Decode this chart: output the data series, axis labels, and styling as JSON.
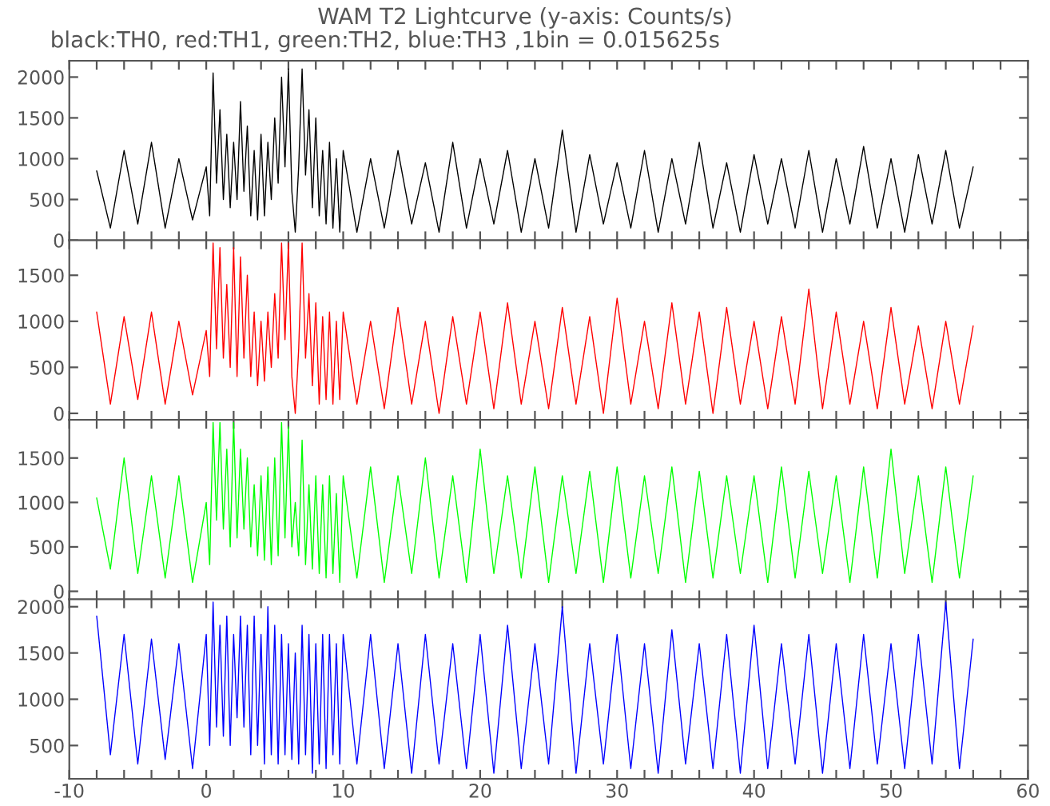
{
  "chart_data": [
    {
      "type": "line",
      "title": "WAM T2 Lightcurve (y-axis: Counts/s)",
      "subtitle": "black:TH0, red:TH1, green:TH2, blue:TH3 ,1bin = 0.015625s",
      "tick_labels": "y",
      "grid": false,
      "legend": false,
      "x": [
        -8,
        -7,
        -6,
        -5,
        -4,
        -3,
        -2,
        -1,
        0,
        0.25,
        0.5,
        0.75,
        1,
        1.25,
        1.5,
        1.75,
        2,
        2.25,
        2.5,
        2.75,
        3,
        3.25,
        3.5,
        3.75,
        4,
        4.25,
        4.5,
        4.75,
        5,
        5.25,
        5.5,
        5.75,
        6,
        6.25,
        6.5,
        6.75,
        7,
        7.25,
        7.5,
        7.75,
        8,
        8.25,
        8.5,
        8.75,
        9,
        9.25,
        9.5,
        9.75,
        10,
        11,
        12,
        13,
        14,
        15,
        16,
        17,
        18,
        19,
        20,
        21,
        22,
        23,
        24,
        25,
        26,
        27,
        28,
        29,
        30,
        31,
        32,
        33,
        34,
        35,
        36,
        37,
        38,
        39,
        40,
        41,
        42,
        43,
        44,
        45,
        46,
        47,
        48,
        49,
        50,
        51,
        52,
        53,
        54,
        55,
        56
      ],
      "series": [
        {
          "color": "#000000",
          "values": [
            850,
            150,
            1100,
            200,
            1200,
            150,
            1000,
            250,
            900,
            300,
            2050,
            700,
            1600,
            500,
            1300,
            400,
            1200,
            500,
            1700,
            600,
            1400,
            300,
            1100,
            250,
            1300,
            300,
            1200,
            500,
            1500,
            700,
            2000,
            900,
            2100,
            600,
            100,
            900,
            2100,
            800,
            1600,
            400,
            1500,
            300,
            1100,
            200,
            1200,
            150,
            1000,
            100,
            1100,
            100,
            1000,
            150,
            1100,
            200,
            950,
            100,
            1200,
            150,
            1000,
            200,
            1100,
            100,
            1000,
            150,
            1350,
            100,
            1050,
            200,
            950,
            150,
            1100,
            100,
            1000,
            200,
            1200,
            150,
            950,
            100,
            1050,
            200,
            1000,
            150,
            1100,
            100,
            1000,
            200,
            1150,
            150,
            1000,
            100,
            1050,
            200,
            1100,
            150,
            900
          ]
        }
      ],
      "xlim": [
        -10,
        60
      ],
      "ylim": [
        0,
        2200
      ],
      "yticks": [
        0,
        500,
        1000,
        1500,
        2000
      ],
      "xticks": [
        -10,
        {
          "value": -8,
          "label": null
        },
        {
          "value": -6,
          "label": null
        },
        {
          "value": -4,
          "label": null
        },
        {
          "value": -2,
          "label": null
        },
        0,
        {
          "value": 2,
          "label": null
        },
        {
          "value": 4,
          "label": null
        },
        {
          "value": 6,
          "label": null
        },
        {
          "value": 8,
          "label": null
        },
        10,
        {
          "value": 12,
          "label": null
        },
        {
          "value": 14,
          "label": null
        },
        {
          "value": 16,
          "label": null
        },
        {
          "value": 18,
          "label": null
        },
        20,
        {
          "value": 22,
          "label": null
        },
        {
          "value": 24,
          "label": null
        },
        {
          "value": 26,
          "label": null
        },
        {
          "value": 28,
          "label": null
        },
        30,
        {
          "value": 32,
          "label": null
        },
        {
          "value": 34,
          "label": null
        },
        {
          "value": 36,
          "label": null
        },
        {
          "value": 38,
          "label": null
        },
        40,
        {
          "value": 42,
          "label": null
        },
        {
          "value": 44,
          "label": null
        },
        {
          "value": 46,
          "label": null
        },
        {
          "value": 48,
          "label": null
        },
        50,
        {
          "value": 52,
          "label": null
        },
        {
          "value": 54,
          "label": null
        },
        {
          "value": 56,
          "label": null
        },
        {
          "value": 58,
          "label": null
        },
        60
      ]
    },
    {
      "type": "line",
      "tick_labels": "y",
      "grid": false,
      "legend": false,
      "x": [
        -8,
        -7,
        -6,
        -5,
        -4,
        -3,
        -2,
        -1,
        0,
        0.25,
        0.5,
        0.75,
        1,
        1.25,
        1.5,
        1.75,
        2,
        2.25,
        2.5,
        2.75,
        3,
        3.25,
        3.5,
        3.75,
        4,
        4.25,
        4.5,
        4.75,
        5,
        5.25,
        5.5,
        5.75,
        6,
        6.25,
        6.5,
        6.75,
        7,
        7.25,
        7.5,
        7.75,
        8,
        8.25,
        8.5,
        8.75,
        9,
        9.25,
        9.5,
        9.75,
        10,
        11,
        12,
        13,
        14,
        15,
        16,
        17,
        18,
        19,
        20,
        21,
        22,
        23,
        24,
        25,
        26,
        27,
        28,
        29,
        30,
        31,
        32,
        33,
        34,
        35,
        36,
        37,
        38,
        39,
        40,
        41,
        42,
        43,
        44,
        45,
        46,
        47,
        48,
        49,
        50,
        51,
        52,
        53,
        54,
        55,
        56
      ],
      "series": [
        {
          "color": "#ff0000",
          "values": [
            1100,
            100,
            1050,
            150,
            1100,
            100,
            1000,
            200,
            900,
            400,
            1850,
            700,
            1800,
            600,
            1400,
            500,
            1800,
            400,
            1700,
            600,
            1500,
            400,
            1100,
            300,
            1000,
            350,
            1100,
            500,
            1300,
            600,
            1850,
            800,
            1850,
            400,
            0,
            700,
            1850,
            600,
            1300,
            300,
            1200,
            100,
            1050,
            150,
            1100,
            100,
            1000,
            150,
            1100,
            100,
            1000,
            50,
            1150,
            100,
            1000,
            0,
            1050,
            100,
            1100,
            50,
            1200,
            100,
            1000,
            50,
            1150,
            100,
            1050,
            0,
            1250,
            100,
            1000,
            50,
            1200,
            100,
            1100,
            0,
            1150,
            100,
            1000,
            50,
            1050,
            100,
            1350,
            50,
            1100,
            100,
            1000,
            50,
            1150,
            100,
            950,
            50,
            1000,
            100,
            950
          ]
        }
      ],
      "xlim": [
        -10,
        60
      ],
      "ylim": [
        -70,
        1880
      ],
      "yticks": [
        0,
        500,
        1000,
        1500
      ],
      "xticks": [
        -10,
        {
          "value": -8,
          "label": null
        },
        {
          "value": -6,
          "label": null
        },
        {
          "value": -4,
          "label": null
        },
        {
          "value": -2,
          "label": null
        },
        0,
        {
          "value": 2,
          "label": null
        },
        {
          "value": 4,
          "label": null
        },
        {
          "value": 6,
          "label": null
        },
        {
          "value": 8,
          "label": null
        },
        10,
        {
          "value": 12,
          "label": null
        },
        {
          "value": 14,
          "label": null
        },
        {
          "value": 16,
          "label": null
        },
        {
          "value": 18,
          "label": null
        },
        20,
        {
          "value": 22,
          "label": null
        },
        {
          "value": 24,
          "label": null
        },
        {
          "value": 26,
          "label": null
        },
        {
          "value": 28,
          "label": null
        },
        30,
        {
          "value": 32,
          "label": null
        },
        {
          "value": 34,
          "label": null
        },
        {
          "value": 36,
          "label": null
        },
        {
          "value": 38,
          "label": null
        },
        40,
        {
          "value": 42,
          "label": null
        },
        {
          "value": 44,
          "label": null
        },
        {
          "value": 46,
          "label": null
        },
        {
          "value": 48,
          "label": null
        },
        50,
        {
          "value": 52,
          "label": null
        },
        {
          "value": 54,
          "label": null
        },
        {
          "value": 56,
          "label": null
        },
        {
          "value": 58,
          "label": null
        },
        60
      ]
    },
    {
      "type": "line",
      "tick_labels": "y",
      "grid": false,
      "legend": false,
      "x": [
        -8,
        -7,
        -6,
        -5,
        -4,
        -3,
        -2,
        -1,
        0,
        0.25,
        0.5,
        0.75,
        1,
        1.25,
        1.5,
        1.75,
        2,
        2.25,
        2.5,
        2.75,
        3,
        3.25,
        3.5,
        3.75,
        4,
        4.25,
        4.5,
        4.75,
        5,
        5.25,
        5.5,
        5.75,
        6,
        6.25,
        6.5,
        6.75,
        7,
        7.25,
        7.5,
        7.75,
        8,
        8.25,
        8.5,
        8.75,
        9,
        9.25,
        9.5,
        9.75,
        10,
        11,
        12,
        13,
        14,
        15,
        16,
        17,
        18,
        19,
        20,
        21,
        22,
        23,
        24,
        25,
        26,
        27,
        28,
        29,
        30,
        31,
        32,
        33,
        34,
        35,
        36,
        37,
        38,
        39,
        40,
        41,
        42,
        43,
        44,
        45,
        46,
        47,
        48,
        49,
        50,
        51,
        52,
        53,
        54,
        55,
        56
      ],
      "series": [
        {
          "color": "#00ff00",
          "values": [
            1050,
            250,
            1500,
            200,
            1300,
            150,
            1300,
            100,
            1000,
            300,
            1900,
            800,
            1900,
            700,
            1600,
            500,
            1900,
            600,
            1600,
            700,
            1500,
            500,
            1200,
            400,
            1300,
            350,
            1400,
            300,
            1500,
            400,
            1900,
            600,
            1850,
            500,
            1000,
            400,
            1700,
            300,
            1200,
            250,
            1300,
            200,
            1200,
            150,
            1300,
            200,
            1100,
            100,
            1300,
            150,
            1400,
            100,
            1300,
            200,
            1500,
            150,
            1300,
            100,
            1600,
            200,
            1300,
            150,
            1400,
            100,
            1300,
            200,
            1350,
            100,
            1400,
            150,
            1300,
            200,
            1400,
            100,
            1350,
            150,
            1300,
            200,
            1300,
            100,
            1400,
            150,
            1350,
            200,
            1300,
            100,
            1400,
            150,
            1600,
            200,
            1300,
            100,
            1400,
            150,
            1300
          ]
        }
      ],
      "xlim": [
        -10,
        60
      ],
      "ylim": [
        -90,
        1930
      ],
      "yticks": [
        0,
        500,
        1000,
        1500
      ],
      "xticks": [
        -10,
        {
          "value": -8,
          "label": null
        },
        {
          "value": -6,
          "label": null
        },
        {
          "value": -4,
          "label": null
        },
        {
          "value": -2,
          "label": null
        },
        0,
        {
          "value": 2,
          "label": null
        },
        {
          "value": 4,
          "label": null
        },
        {
          "value": 6,
          "label": null
        },
        {
          "value": 8,
          "label": null
        },
        10,
        {
          "value": 12,
          "label": null
        },
        {
          "value": 14,
          "label": null
        },
        {
          "value": 16,
          "label": null
        },
        {
          "value": 18,
          "label": null
        },
        20,
        {
          "value": 22,
          "label": null
        },
        {
          "value": 24,
          "label": null
        },
        {
          "value": 26,
          "label": null
        },
        {
          "value": 28,
          "label": null
        },
        30,
        {
          "value": 32,
          "label": null
        },
        {
          "value": 34,
          "label": null
        },
        {
          "value": 36,
          "label": null
        },
        {
          "value": 38,
          "label": null
        },
        40,
        {
          "value": 42,
          "label": null
        },
        {
          "value": 44,
          "label": null
        },
        {
          "value": 46,
          "label": null
        },
        {
          "value": 48,
          "label": null
        },
        50,
        {
          "value": 52,
          "label": null
        },
        {
          "value": 54,
          "label": null
        },
        {
          "value": 56,
          "label": null
        },
        {
          "value": 58,
          "label": null
        },
        60
      ]
    },
    {
      "type": "line",
      "grid": false,
      "legend": false,
      "x": [
        -8,
        -7,
        -6,
        -5,
        -4,
        -3,
        -2,
        -1,
        0,
        0.25,
        0.5,
        0.75,
        1,
        1.25,
        1.5,
        1.75,
        2,
        2.25,
        2.5,
        2.75,
        3,
        3.25,
        3.5,
        3.75,
        4,
        4.25,
        4.5,
        4.75,
        5,
        5.25,
        5.5,
        5.75,
        6,
        6.25,
        6.5,
        6.75,
        7,
        7.25,
        7.5,
        7.75,
        8,
        8.25,
        8.5,
        8.75,
        9,
        9.25,
        9.5,
        9.75,
        10,
        11,
        12,
        13,
        14,
        15,
        16,
        17,
        18,
        19,
        20,
        21,
        22,
        23,
        24,
        25,
        26,
        27,
        28,
        29,
        30,
        31,
        32,
        33,
        34,
        35,
        36,
        37,
        38,
        39,
        40,
        41,
        42,
        43,
        44,
        45,
        46,
        47,
        48,
        49,
        50,
        51,
        52,
        53,
        54,
        55,
        56
      ],
      "series": [
        {
          "color": "#0000ff",
          "values": [
            1900,
            400,
            1700,
            300,
            1650,
            350,
            1600,
            250,
            1700,
            500,
            2050,
            700,
            1800,
            600,
            1900,
            500,
            1700,
            800,
            1900,
            700,
            1800,
            400,
            1900,
            500,
            1700,
            300,
            2000,
            400,
            1800,
            300,
            1700,
            400,
            1600,
            350,
            1500,
            300,
            1800,
            400,
            1700,
            200,
            1600,
            300,
            1700,
            250,
            1700,
            400,
            1600,
            300,
            1700,
            300,
            1700,
            250,
            1600,
            200,
            1700,
            300,
            1600,
            250,
            1700,
            200,
            1800,
            250,
            1600,
            300,
            2000,
            200,
            1600,
            300,
            1700,
            250,
            1600,
            200,
            1750,
            300,
            1600,
            250,
            1700,
            200,
            1800,
            250,
            1600,
            300,
            1700,
            200,
            1600,
            250,
            1700,
            300,
            1600,
            250,
            1700,
            300,
            2050,
            250,
            1650
          ]
        }
      ],
      "xlim": [
        -10,
        60
      ],
      "ylim": [
        140,
        2080
      ],
      "yticks": [
        500,
        1000,
        1500,
        2000
      ],
      "xticks": [
        -10,
        {
          "value": -8,
          "label": null
        },
        {
          "value": -6,
          "label": null
        },
        {
          "value": -4,
          "label": null
        },
        {
          "value": -2,
          "label": null
        },
        0,
        {
          "value": 2,
          "label": null
        },
        {
          "value": 4,
          "label": null
        },
        {
          "value": 6,
          "label": null
        },
        {
          "value": 8,
          "label": null
        },
        10,
        {
          "value": 12,
          "label": null
        },
        {
          "value": 14,
          "label": null
        },
        {
          "value": 16,
          "label": null
        },
        {
          "value": 18,
          "label": null
        },
        20,
        {
          "value": 22,
          "label": null
        },
        {
          "value": 24,
          "label": null
        },
        {
          "value": 26,
          "label": null
        },
        {
          "value": 28,
          "label": null
        },
        30,
        {
          "value": 32,
          "label": null
        },
        {
          "value": 34,
          "label": null
        },
        {
          "value": 36,
          "label": null
        },
        {
          "value": 38,
          "label": null
        },
        40,
        {
          "value": 42,
          "label": null
        },
        {
          "value": 44,
          "label": null
        },
        {
          "value": 46,
          "label": null
        },
        {
          "value": 48,
          "label": null
        },
        50,
        {
          "value": 52,
          "label": null
        },
        {
          "value": 54,
          "label": null
        },
        {
          "value": 56,
          "label": null
        },
        {
          "value": 58,
          "label": null
        },
        60
      ]
    }
  ]
}
